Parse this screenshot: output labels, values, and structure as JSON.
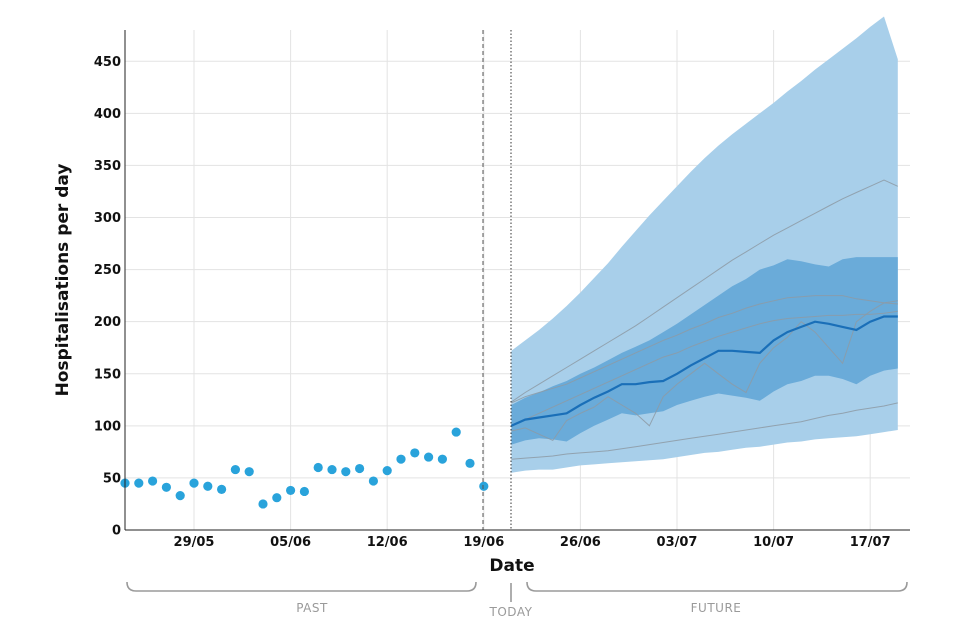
{
  "chart_data": {
    "type": "line",
    "xlabel": "Date",
    "ylabel": "Hospitalisations per day",
    "ylim": [
      0,
      480
    ],
    "y_ticks": [
      0,
      50,
      100,
      150,
      200,
      250,
      300,
      350,
      400,
      450
    ],
    "x_ticks": [
      {
        "day": 5,
        "label": "29/05"
      },
      {
        "day": 12,
        "label": "05/06"
      },
      {
        "day": 19,
        "label": "12/06"
      },
      {
        "day": 26,
        "label": "19/06"
      },
      {
        "day": 33,
        "label": "26/06"
      },
      {
        "day": 40,
        "label": "03/07"
      },
      {
        "day": 47,
        "label": "10/07"
      },
      {
        "day": 54,
        "label": "17/07"
      }
    ],
    "grid": true,
    "today_label": "TODAY",
    "past_label": "PAST",
    "future_label": "FUTURE",
    "colors": {
      "observed": "#29a3db",
      "median": "#1a6fb8",
      "band_outer": "#a8cfea",
      "band_inner": "#6aabd9",
      "scenarios": "#8d9aa5",
      "grid": "#e3e3e3"
    },
    "observed": {
      "x": [
        0,
        1,
        2,
        3,
        4,
        5,
        6,
        7,
        8,
        9,
        10,
        11,
        12,
        13,
        14,
        15,
        16,
        17,
        18,
        19,
        20,
        21,
        22,
        23,
        24,
        25,
        26
      ],
      "y": [
        45,
        45,
        47,
        41,
        33,
        45,
        42,
        39,
        58,
        56,
        25,
        31,
        38,
        37,
        60,
        58,
        56,
        59,
        47,
        57,
        68,
        74,
        70,
        68,
        94,
        64,
        42
      ]
    },
    "forecast": {
      "x": [
        28,
        29,
        30,
        31,
        32,
        33,
        34,
        35,
        36,
        37,
        38,
        39,
        40,
        41,
        42,
        43,
        44,
        45,
        46,
        47,
        48,
        49,
        50,
        51,
        52,
        53,
        54,
        55,
        56
      ],
      "median": [
        100,
        106,
        108,
        110,
        112,
        120,
        127,
        133,
        140,
        140,
        142,
        143,
        150,
        158,
        165,
        172,
        172,
        171,
        170,
        182,
        190,
        195,
        200,
        198,
        195,
        192,
        200,
        205,
        205
      ],
      "inner_low": [
        82,
        86,
        88,
        87,
        85,
        93,
        100,
        106,
        112,
        110,
        112,
        114,
        120,
        124,
        128,
        131,
        129,
        127,
        124,
        133,
        140,
        143,
        148,
        148,
        145,
        140,
        148,
        153,
        155
      ],
      "inner_high": [
        120,
        127,
        132,
        138,
        143,
        150,
        156,
        163,
        170,
        176,
        182,
        190,
        198,
        207,
        216,
        225,
        234,
        241,
        250,
        254,
        260,
        258,
        255,
        253,
        260,
        262,
        262,
        262,
        262
      ],
      "outer_low": [
        55,
        57,
        58,
        58,
        60,
        62,
        63,
        64,
        65,
        66,
        67,
        68,
        70,
        72,
        74,
        75,
        77,
        79,
        80,
        82,
        84,
        85,
        87,
        88,
        89,
        90,
        92,
        94,
        96
      ],
      "outer_high": [
        172,
        182,
        192,
        203,
        215,
        228,
        242,
        256,
        272,
        287,
        302,
        316,
        330,
        344,
        357,
        369,
        380,
        390,
        400,
        410,
        421,
        431,
        442,
        452,
        462,
        472,
        483,
        493,
        452
      ],
      "scenarios": [
        [
          123,
          132,
          140,
          148,
          156,
          164,
          172,
          180,
          188,
          196,
          205,
          214,
          223,
          232,
          241,
          250,
          259,
          267,
          275,
          283,
          290,
          297,
          304,
          311,
          318,
          324,
          330,
          336,
          330
        ],
        [
          122,
          128,
          132,
          136,
          140,
          146,
          152,
          158,
          164,
          170,
          176,
          182,
          187,
          193,
          198,
          204,
          208,
          213,
          217,
          220,
          223,
          224,
          225,
          225,
          225,
          222,
          220,
          218,
          217
        ],
        [
          100,
          106,
          112,
          118,
          124,
          130,
          136,
          142,
          148,
          154,
          160,
          166,
          170,
          176,
          181,
          186,
          190,
          194,
          198,
          201,
          203,
          204,
          205,
          206,
          206,
          207,
          207,
          208,
          210
        ],
        [
          95,
          98,
          92,
          86,
          105,
          112,
          118,
          128,
          120,
          112,
          100,
          128,
          140,
          150,
          160,
          150,
          140,
          132,
          160,
          175,
          185,
          200,
          190,
          175,
          160,
          200,
          210,
          218,
          220
        ],
        [
          68,
          69,
          70,
          71,
          73,
          74,
          75,
          76,
          78,
          80,
          82,
          84,
          86,
          88,
          90,
          92,
          94,
          96,
          98,
          100,
          102,
          104,
          107,
          110,
          112,
          115,
          117,
          119,
          122
        ]
      ]
    }
  }
}
